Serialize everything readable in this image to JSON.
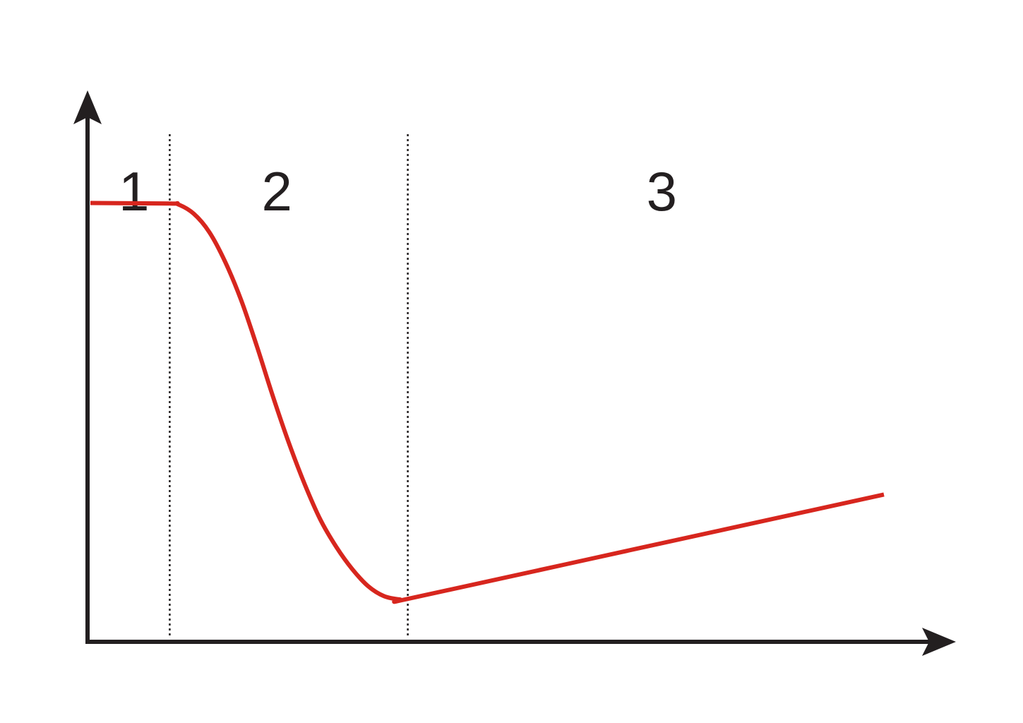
{
  "chart_data": {
    "type": "line",
    "title": "",
    "xlabel": "",
    "ylabel": "",
    "axis_ticks": false,
    "grid": false,
    "xlim": [
      0,
      100
    ],
    "ylim": [
      0,
      100
    ],
    "region_boundaries": [
      10,
      40
    ],
    "regions": [
      {
        "label": "1",
        "x_center": 5.5
      },
      {
        "label": "2",
        "x_center": 23.5
      },
      {
        "label": "3",
        "x_center": 72
      }
    ],
    "series": [
      {
        "color": "#d7261e",
        "points": [
          {
            "x": 0,
            "y": 79.6
          },
          {
            "x": 10,
            "y": 79.5
          },
          {
            "x": 11,
            "y": 79.4
          },
          {
            "x": 13,
            "y": 77.7
          },
          {
            "x": 15,
            "y": 74.3
          },
          {
            "x": 17,
            "y": 68.9
          },
          {
            "x": 19,
            "y": 62
          },
          {
            "x": 21,
            "y": 53.6
          },
          {
            "x": 23,
            "y": 44.6
          },
          {
            "x": 25,
            "y": 36.2
          },
          {
            "x": 27,
            "y": 28.7
          },
          {
            "x": 29,
            "y": 22.2
          },
          {
            "x": 31,
            "y": 17.3
          },
          {
            "x": 33,
            "y": 13.3
          },
          {
            "x": 35,
            "y": 10.2
          },
          {
            "x": 37,
            "y": 8.4
          },
          {
            "x": 39,
            "y": 7.8
          },
          {
            "x": 40,
            "y": 7.9
          },
          {
            "x": 60,
            "y": 14.2
          },
          {
            "x": 80,
            "y": 20.5
          },
          {
            "x": 100,
            "y": 26.8
          }
        ]
      }
    ]
  }
}
